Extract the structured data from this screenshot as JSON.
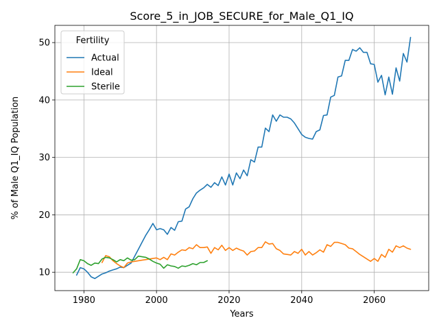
{
  "chart_data": {
    "type": "line",
    "title": "Score_5_in_JOB_SECURE_for_Male_Q1_IQ",
    "xlabel": "Years",
    "ylabel": "% of Male Q1_IQ Population",
    "xlim": [
      1972,
      2075
    ],
    "ylim": [
      6.8,
      53
    ],
    "xticks": [
      1980,
      2000,
      2020,
      2040,
      2060
    ],
    "yticks": [
      10,
      20,
      30,
      40,
      50
    ],
    "grid": true,
    "legend": {
      "title": "Fertility",
      "placement": "top-left"
    },
    "colors": {
      "Actual": "#1f77b4",
      "Ideal": "#ff7f0e",
      "Sterile": "#2ca02c"
    },
    "series": [
      {
        "name": "Actual",
        "x": [
          1978,
          1979,
          1980,
          1981,
          1982,
          1983,
          1984,
          1985,
          1986,
          1987,
          1988,
          1989,
          1990,
          1991,
          1992,
          1993,
          1994,
          1995,
          1996,
          1997,
          1998,
          1999,
          2000,
          2001,
          2002,
          2003,
          2004,
          2005,
          2006,
          2007,
          2008,
          2009,
          2010,
          2011,
          2012,
          2013,
          2014,
          2015,
          2016,
          2017,
          2018,
          2019,
          2020,
          2021,
          2022,
          2023,
          2024,
          2025,
          2026,
          2027,
          2028,
          2029,
          2030,
          2031,
          2032,
          2033,
          2034,
          2035,
          2036,
          2037,
          2038,
          2039,
          2040,
          2041,
          2042,
          2043,
          2044,
          2045,
          2046,
          2047,
          2048,
          2049,
          2050,
          2051,
          2052,
          2053,
          2054,
          2055,
          2056,
          2057,
          2058,
          2059,
          2060,
          2061,
          2062,
          2063,
          2064,
          2065,
          2066,
          2067,
          2068,
          2069,
          2070
        ],
        "y": [
          9.5,
          10.8,
          10.6,
          10.0,
          9.2,
          8.9,
          9.3,
          9.7,
          9.9,
          10.2,
          10.4,
          10.6,
          10.9,
          10.8,
          11.2,
          11.6,
          12.8,
          14.0,
          15.2,
          16.4,
          17.4,
          18.5,
          17.4,
          17.6,
          17.4,
          16.6,
          17.8,
          17.3,
          18.8,
          18.9,
          21.0,
          21.4,
          22.8,
          23.8,
          24.3,
          24.7,
          25.3,
          24.8,
          25.6,
          25.1,
          26.6,
          25.2,
          27.1,
          25.2,
          27.3,
          26.3,
          27.8,
          26.8,
          29.6,
          29.2,
          31.8,
          31.8,
          35.1,
          34.5,
          37.4,
          36.3,
          37.4,
          37.0,
          37.0,
          36.7,
          36.0,
          35.0,
          34.0,
          33.5,
          33.3,
          33.2,
          34.5,
          34.8,
          37.3,
          37.4,
          40.5,
          40.8,
          44.0,
          44.2,
          46.9,
          46.9,
          48.8,
          48.5,
          49.1,
          48.3,
          48.3,
          46.3,
          46.2,
          43.1,
          44.3,
          40.9,
          44.0,
          41.0,
          45.6,
          43.3,
          48.1,
          46.6,
          50.9
        ]
      },
      {
        "name": "Ideal",
        "x": [
          1985,
          1986,
          1987,
          1988,
          1989,
          1990,
          1991,
          1992,
          1993,
          1994,
          1995,
          1996,
          1997,
          1998,
          1999,
          2000,
          2001,
          2002,
          2003,
          2004,
          2005,
          2006,
          2007,
          2008,
          2009,
          2010,
          2011,
          2012,
          2013,
          2014,
          2015,
          2016,
          2017,
          2018,
          2019,
          2020,
          2021,
          2022,
          2023,
          2024,
          2025,
          2026,
          2027,
          2028,
          2029,
          2030,
          2031,
          2032,
          2033,
          2034,
          2035,
          2036,
          2037,
          2038,
          2039,
          2040,
          2041,
          2042,
          2043,
          2044,
          2045,
          2046,
          2047,
          2048,
          2049,
          2050,
          2051,
          2052,
          2053,
          2054,
          2055,
          2056,
          2057,
          2058,
          2059,
          2060,
          2061,
          2062,
          2063,
          2064,
          2065,
          2066,
          2067,
          2068,
          2069,
          2070
        ],
        "y": [
          11.7,
          12.9,
          12.7,
          12.0,
          11.5,
          11.1,
          10.8,
          11.6,
          11.8,
          11.9,
          12.0,
          12.1,
          12.2,
          12.3,
          12.4,
          12.5,
          12.2,
          12.6,
          12.2,
          13.2,
          13.0,
          13.5,
          13.9,
          13.8,
          14.3,
          14.1,
          14.8,
          14.3,
          14.3,
          14.4,
          13.3,
          14.3,
          13.9,
          14.7,
          13.8,
          14.3,
          13.8,
          14.2,
          13.9,
          13.7,
          13.0,
          13.6,
          13.7,
          14.3,
          14.3,
          15.3,
          14.9,
          15.0,
          14.1,
          13.8,
          13.2,
          13.1,
          13.0,
          13.6,
          13.3,
          14.0,
          13.0,
          13.6,
          13.0,
          13.4,
          13.9,
          13.5,
          14.8,
          14.5,
          15.2,
          15.2,
          15.0,
          14.8,
          14.2,
          14.1,
          13.6,
          13.1,
          12.7,
          12.3,
          11.9,
          12.4,
          11.9,
          13.1,
          12.6,
          14.0,
          13.5,
          14.6,
          14.3,
          14.6,
          14.2,
          14.0
        ]
      },
      {
        "name": "Sterile",
        "x": [
          1977,
          1978,
          1979,
          1980,
          1981,
          1982,
          1983,
          1984,
          1985,
          1986,
          1987,
          1988,
          1989,
          1990,
          1991,
          1992,
          1993,
          1994,
          1995,
          1996,
          1997,
          1998,
          1999,
          2000,
          2001,
          2002,
          2003,
          2004,
          2005,
          2006,
          2007,
          2008,
          2009,
          2010,
          2011,
          2012,
          2013,
          2014
        ],
        "y": [
          9.9,
          10.6,
          12.2,
          12.0,
          11.5,
          11.2,
          11.6,
          11.5,
          12.3,
          12.6,
          12.5,
          12.2,
          11.8,
          12.2,
          12.0,
          12.5,
          12.1,
          12.2,
          12.8,
          12.7,
          12.6,
          12.3,
          11.9,
          11.6,
          11.4,
          10.7,
          11.3,
          11.1,
          11.0,
          10.7,
          11.1,
          11.0,
          11.2,
          11.5,
          11.3,
          11.7,
          11.7,
          12.0
        ]
      }
    ]
  }
}
